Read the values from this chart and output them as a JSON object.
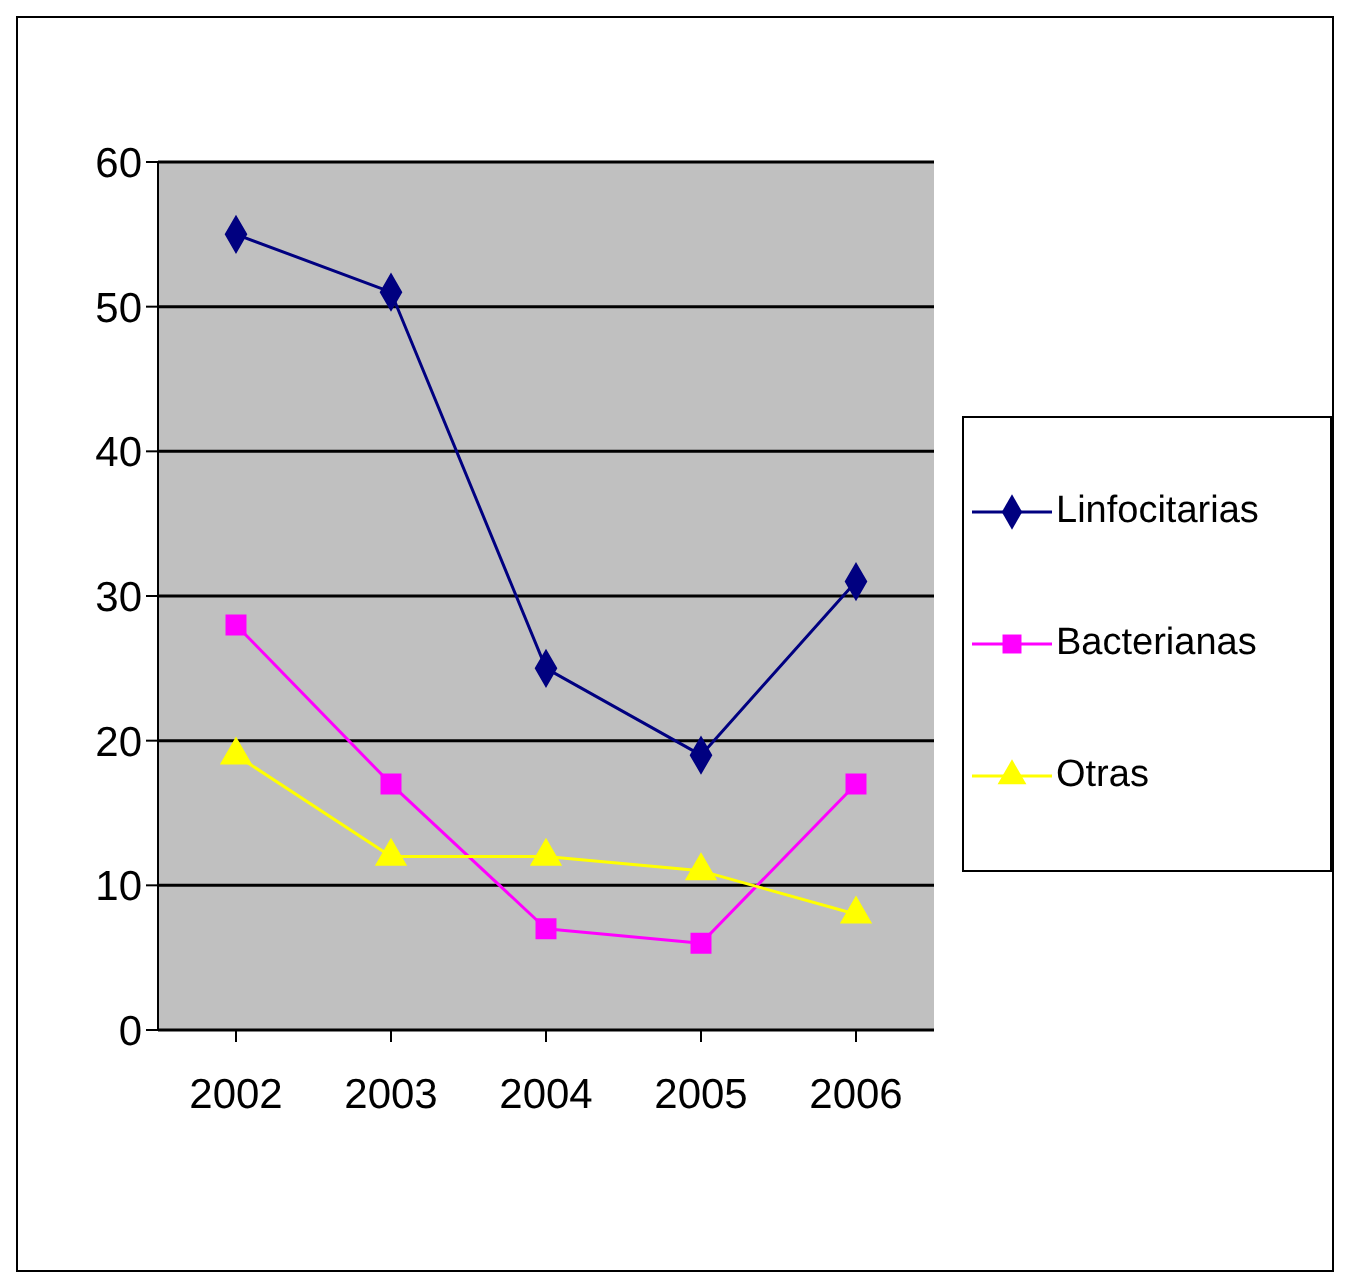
{
  "chart_data": {
    "type": "line",
    "categories": [
      "2002",
      "2003",
      "2004",
      "2005",
      "2006"
    ],
    "series": [
      {
        "name": "Linfocitarias",
        "color": "#000080",
        "marker": "diamond",
        "values": [
          55,
          51,
          25,
          19,
          31
        ]
      },
      {
        "name": "Bacterianas",
        "color": "#ff00ff",
        "marker": "square",
        "values": [
          28,
          17,
          7,
          6,
          17
        ]
      },
      {
        "name": "Otras",
        "color": "#ffff00",
        "marker": "triangle",
        "values": [
          19,
          12,
          12,
          11,
          8
        ]
      }
    ],
    "ylim": [
      0,
      60
    ],
    "yticks": [
      0,
      10,
      20,
      30,
      40,
      50,
      60
    ],
    "grid": "y",
    "legend": "right"
  }
}
